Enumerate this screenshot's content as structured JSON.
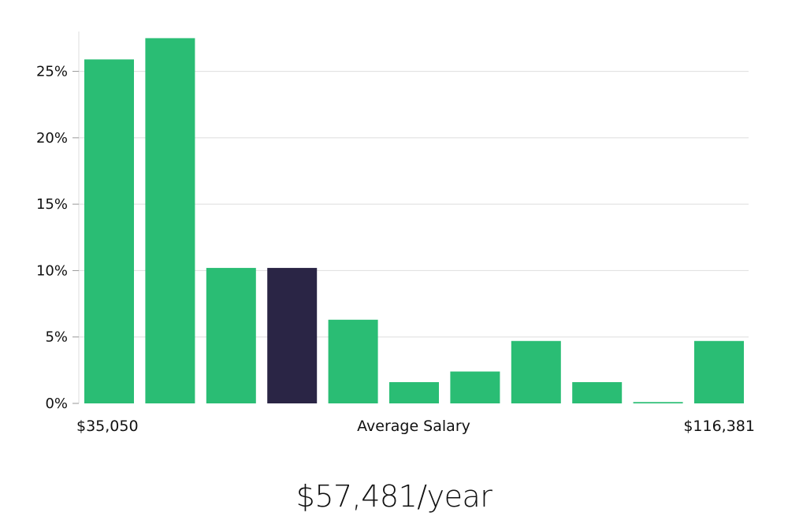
{
  "colors": {
    "bar": "#2abd74",
    "highlight": "#2a2545",
    "grid": "#dedede"
  },
  "chart_data": {
    "type": "bar",
    "title": "",
    "xlabel": "Average Salary",
    "ylabel": "",
    "ylim": [
      0,
      28
    ],
    "yticks": [
      "0%",
      "5%",
      "10%",
      "15%",
      "20%",
      "25%"
    ],
    "ytick_values": [
      0,
      5,
      10,
      15,
      20,
      25
    ],
    "x_min_label": "$35,050",
    "x_max_label": "$116,381",
    "values": [
      25.9,
      27.5,
      10.2,
      10.2,
      6.3,
      1.6,
      2.4,
      4.7,
      1.6,
      0.1,
      4.7
    ],
    "highlight_index": 3,
    "grid": true
  },
  "headline": "$57,481/year"
}
